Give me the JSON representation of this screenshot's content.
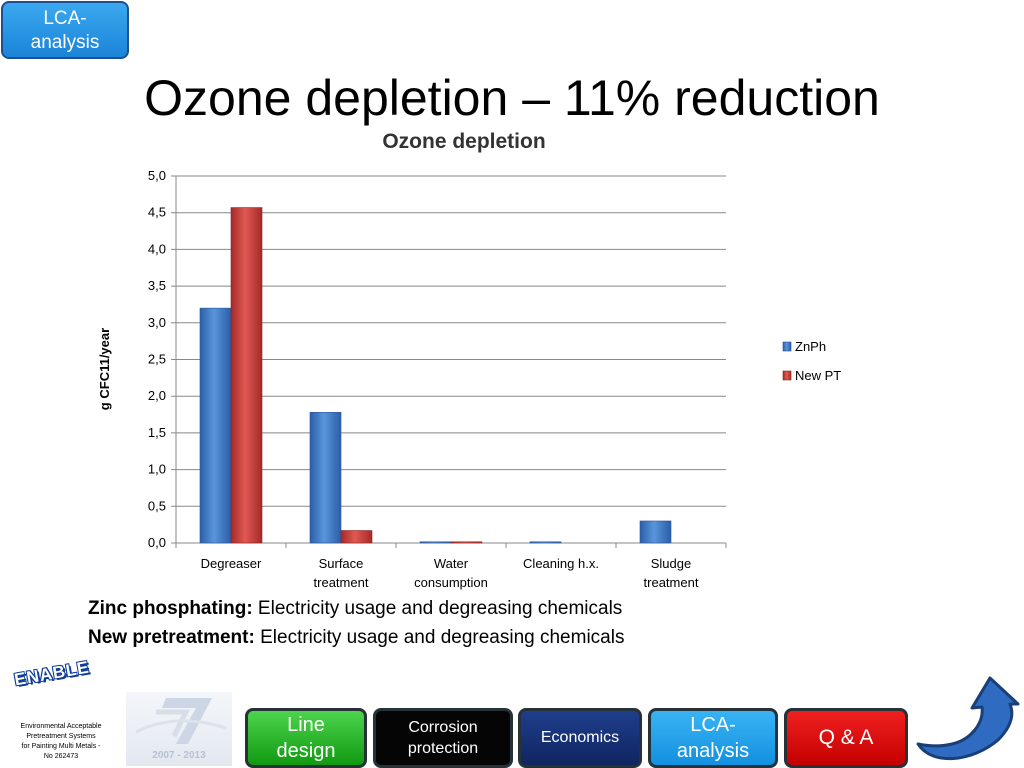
{
  "badge": {
    "line1": "LCA-",
    "line2": "analysis"
  },
  "slide_title": "Ozone depletion – 11% reduction",
  "chart_data": {
    "type": "bar",
    "title": "Ozone depletion",
    "xlabel": "",
    "ylabel": "g CFC11/year",
    "ylim": [
      0,
      5
    ],
    "ytick_step": 0.5,
    "yticks": [
      "0,0",
      "0,5",
      "1,0",
      "1,5",
      "2,0",
      "2,5",
      "3,0",
      "3,5",
      "4,0",
      "4,5",
      "5,0"
    ],
    "grid": true,
    "legend_position": "right",
    "categories": [
      [
        "Degreaser"
      ],
      [
        "Surface",
        "treatment"
      ],
      [
        "Water",
        "consumption"
      ],
      [
        "Cleaning h.x."
      ],
      [
        "Sludge",
        "treatment"
      ]
    ],
    "series": [
      {
        "name": "ZnPh",
        "values": [
          3.2,
          1.78,
          0.01,
          0.01,
          0.3
        ],
        "color": "#3f79c6"
      },
      {
        "name": "New PT",
        "values": [
          4.57,
          0.17,
          0.01,
          0.0,
          0.0
        ],
        "color": "#cc3a37"
      }
    ]
  },
  "notes": {
    "line1_label": "Zinc phosphating:",
    "line1_text": " Electricity usage and degreasing chemicals",
    "line2_label": "New pretreatment:",
    "line2_text": " Electricity usage and degreasing chemicals"
  },
  "footer": {
    "logo_text": "ENABLE",
    "caption_lines": [
      "Environmental Acceptable",
      "Pretreatment Systems",
      "for Painting Multi Metals -",
      "No 262473"
    ],
    "fp7_years": "2007 - 2013"
  },
  "nav": {
    "line_design": [
      "Line",
      "design"
    ],
    "corrosion": [
      "Corrosion",
      "protection"
    ],
    "economics": "Economics",
    "lca": [
      "LCA-",
      "analysis"
    ],
    "qa": "Q & A"
  },
  "icons": {
    "back": "curved-back-arrow-icon"
  }
}
